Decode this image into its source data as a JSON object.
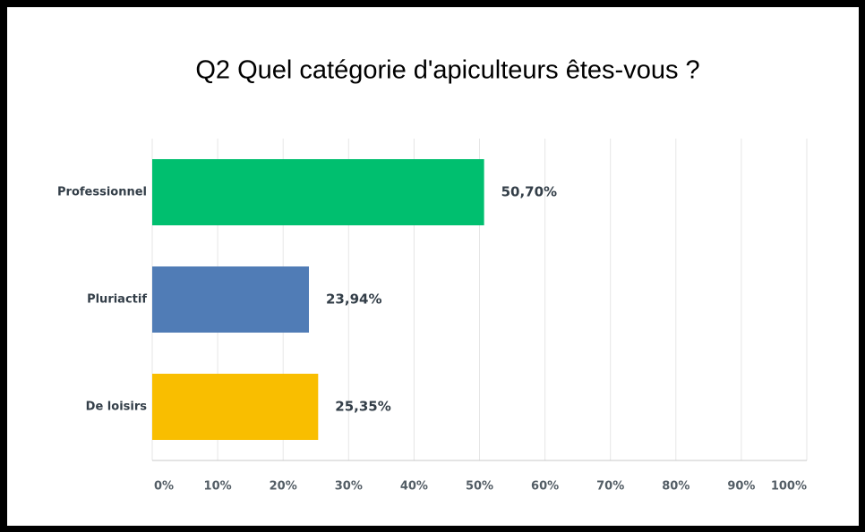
{
  "chart_data": {
    "type": "bar",
    "orientation": "horizontal",
    "title": "Q2 Quel catégorie d'apiculteurs êtes-vous ?",
    "categories": [
      "Professionnel",
      "Pluriactif",
      "De loisirs"
    ],
    "values": [
      50.7,
      23.94,
      25.35
    ],
    "value_labels": [
      "50,70%",
      "23,94%",
      "25,35%"
    ],
    "colors": [
      "#00bf6f",
      "#507cb6",
      "#f9be00"
    ],
    "xlim": [
      0,
      100
    ],
    "xticks": [
      {
        "value": 0,
        "label": "0%"
      },
      {
        "value": 10,
        "label": "10%"
      },
      {
        "value": 20,
        "label": "20%"
      },
      {
        "value": 30,
        "label": "30%"
      },
      {
        "value": 40,
        "label": "40%"
      },
      {
        "value": 50,
        "label": "50%"
      },
      {
        "value": 60,
        "label": "60%"
      },
      {
        "value": 70,
        "label": "70%"
      },
      {
        "value": 80,
        "label": "80%"
      },
      {
        "value": 90,
        "label": "90%"
      },
      {
        "value": 100,
        "label": "100%"
      }
    ],
    "grid": true
  }
}
